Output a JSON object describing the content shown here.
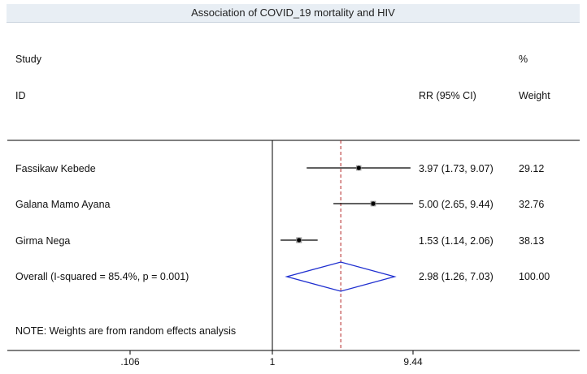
{
  "chart_data": {
    "type": "forest",
    "title": "Association of COVID_19 mortality and HIV",
    "header": {
      "study_top": "Study",
      "study_bottom": "ID",
      "effect": "RR (95% CI)",
      "weight_top": "%",
      "weight_bottom": "Weight"
    },
    "studies": [
      {
        "name": "Fassikaw Kebede",
        "rr": 3.97,
        "lo": 1.73,
        "hi": 9.07,
        "ci_text": "3.97 (1.73, 9.07)",
        "weight": "29.12"
      },
      {
        "name": "Galana Mamo Ayana",
        "rr": 5.0,
        "lo": 2.65,
        "hi": 9.44,
        "ci_text": "5.00 (2.65, 9.44)",
        "weight": "32.76"
      },
      {
        "name": "Girma Nega",
        "rr": 1.53,
        "lo": 1.14,
        "hi": 2.06,
        "ci_text": "1.53 (1.14, 2.06)",
        "weight": "38.13"
      }
    ],
    "overall": {
      "label": "Overall  (I-squared = 85.4%, p = 0.001)",
      "rr": 2.98,
      "lo": 1.26,
      "hi": 7.03,
      "ci_text": "2.98 (1.26, 7.03)",
      "weight": "100.00"
    },
    "note": "NOTE: Weights are from random effects analysis",
    "x_scale": "log",
    "x_ticks": [
      {
        "value": 0.106,
        "label": ".106"
      },
      {
        "value": 1,
        "label": "1"
      },
      {
        "value": 9.44,
        "label": "9.44"
      }
    ],
    "null_value": 1,
    "colors": {
      "line": "#000000",
      "diamond": "#1f2fd0",
      "reference": "#b22222",
      "header_bg": "#e8eef4"
    }
  }
}
